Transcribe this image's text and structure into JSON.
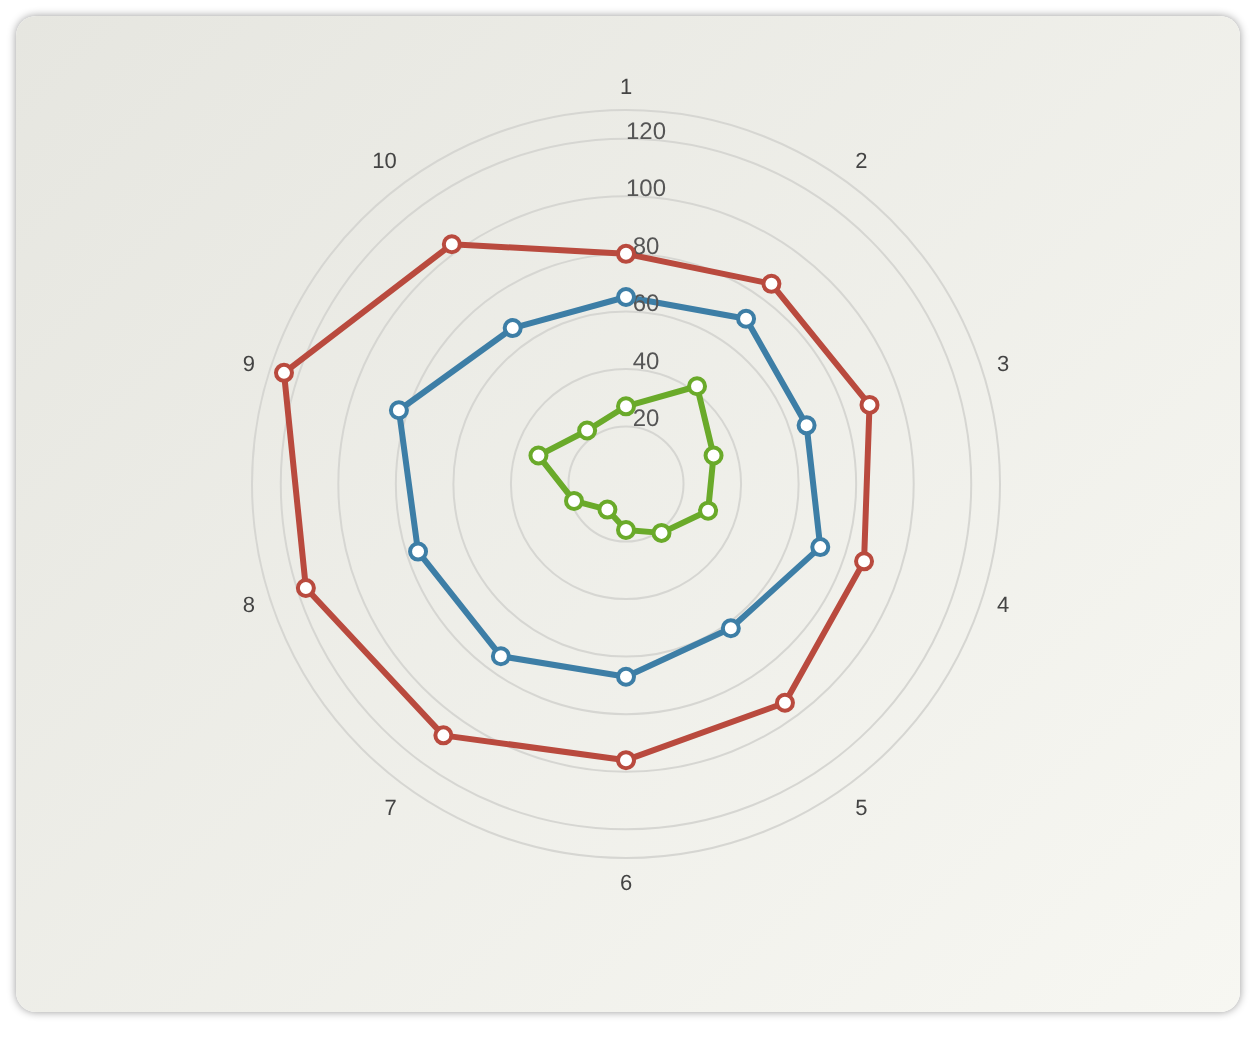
{
  "chart_data": {
    "type": "radar",
    "categories": [
      "1",
      "2",
      "3",
      "4",
      "5",
      "6",
      "7",
      "8",
      "9",
      "10"
    ],
    "series": [
      {
        "color": "#b94a3e",
        "values": [
          80,
          86,
          89,
          87,
          94,
          96,
          108,
          117,
          125,
          103
        ]
      },
      {
        "color": "#3d7ea6",
        "values": [
          65,
          71,
          66,
          71,
          62,
          67,
          74,
          76,
          83,
          67
        ]
      },
      {
        "color": "#6aaa2a",
        "values": [
          27,
          42,
          32,
          30,
          21,
          16,
          11,
          19,
          32,
          23
        ]
      }
    ],
    "ylim": [
      0,
      130
    ],
    "yticks": [
      20,
      40,
      60,
      80,
      100,
      120
    ],
    "grid": true,
    "marker": "circle",
    "legend": false
  }
}
